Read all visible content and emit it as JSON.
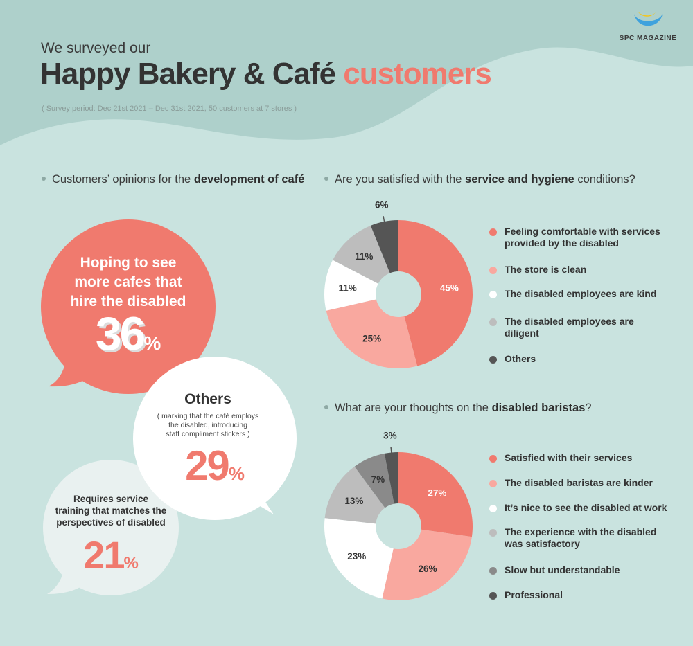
{
  "brand": {
    "logo_text": "SPC MAGAZINE"
  },
  "header": {
    "pre_title": "We surveyed our",
    "title_main": "Happy Bakery & Café ",
    "title_highlight": "customers",
    "period": "( Survey period: Dec 21st 2021 – Dec 31st 2021, 50 customers at 7 stores )"
  },
  "section_left": {
    "heading_pre": "Customers’ opinions for the ",
    "heading_bold": "development of café",
    "bubble1": {
      "line1": "Hoping to see",
      "line2": "more cafes that",
      "line3": "hire the disabled",
      "value": "36",
      "unit": "%"
    },
    "bubble2": {
      "title": "Others",
      "note1": "( marking that the café employs",
      "note2": "the disabled, introducing",
      "note3": "staff compliment stickers )",
      "value": "29",
      "unit": "%"
    },
    "bubble3": {
      "line1": "Requires service",
      "line2": "training that matches the",
      "line3": "perspectives of disabled",
      "value": "21",
      "unit": "%"
    }
  },
  "section_right1": {
    "heading_pre": "Are you satisfied with the ",
    "heading_bold": "service and hygiene",
    "heading_post": " conditions?"
  },
  "section_right2": {
    "heading_pre": "What are your thoughts on the ",
    "heading_bold": "disabled baristas",
    "heading_post": "?"
  },
  "chart_data": [
    {
      "type": "pie",
      "title": "Are you satisfied with the service and hygiene conditions?",
      "categories": [
        "Feeling comfortable with services provided by the disabled",
        "The store is clean",
        "The disabled employees are kind",
        "The disabled employees are diligent",
        "Others"
      ],
      "legend_lines": [
        [
          "Feeling comfortable with services",
          "provided by the disabled"
        ],
        [
          "The store is clean"
        ],
        [
          "The disabled employees are kind"
        ],
        [
          "The disabled employees are",
          "diligent"
        ],
        [
          "Others"
        ]
      ],
      "values": [
        45,
        25,
        11,
        11,
        6
      ],
      "labels": [
        "45%",
        "25%",
        "11%",
        "11%",
        "6%"
      ],
      "colors": [
        "#f07a6e",
        "#f9a89f",
        "#ffffff",
        "#bdbdbd",
        "#555555"
      ],
      "legend_position": "right"
    },
    {
      "type": "pie",
      "title": "What are your thoughts on the disabled baristas?",
      "categories": [
        "Satisfied with their services",
        "The disabled baristas are kinder",
        "It’s nice to see the disabled at work",
        "The experience with the disabled was satisfactory",
        "Slow but understandable",
        "Professional"
      ],
      "legend_lines": [
        [
          "Satisfied with their services"
        ],
        [
          "The disabled baristas are kinder"
        ],
        [
          "It’s nice to see the disabled at work"
        ],
        [
          "The experience with the disabled",
          "was satisfactory"
        ],
        [
          "Slow but understandable"
        ],
        [
          "Professional"
        ]
      ],
      "values": [
        27,
        26,
        23,
        13,
        7,
        3
      ],
      "labels": [
        "27%",
        "26%",
        "23%",
        "13%",
        "7%",
        "3%"
      ],
      "colors": [
        "#f07a6e",
        "#f9a89f",
        "#ffffff",
        "#bdbdbd",
        "#8a8a8a",
        "#555555"
      ],
      "legend_position": "right"
    }
  ]
}
